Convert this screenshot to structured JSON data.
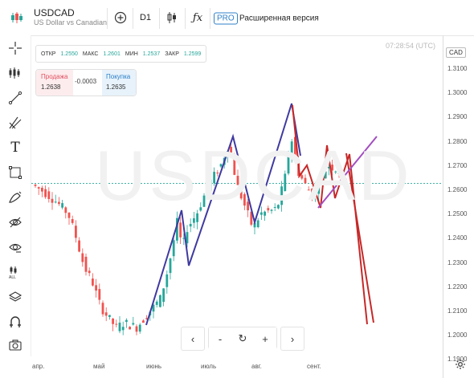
{
  "header": {
    "symbol": "USDCAD",
    "symbol_desc": "US Dollar vs Canadian",
    "timeframe": "D1",
    "pro_badge": "PRO",
    "extended_label": "Расширенная версия"
  },
  "ohlc": {
    "open_label": "ОТКР",
    "open_value": "1.2550",
    "high_label": "МАКС",
    "high_value": "1.2601",
    "low_label": "МИН",
    "low_value": "1.2537",
    "close_label": "ЗАКР",
    "close_value": "1.2599"
  },
  "trade": {
    "sell_label": "Продажа",
    "sell_price": "1.2638",
    "spread": "-0.0003",
    "buy_label": "Покупка",
    "buy_price": "1.2635"
  },
  "clock": "07:28:54 (UTC)",
  "currency_tag": "CAD",
  "watermark": "USDCAD",
  "price_axis": [
    "1.3100",
    "1.3000",
    "1.2900",
    "1.2800",
    "1.2700",
    "1.2600",
    "1.2500",
    "1.2400",
    "1.2300",
    "1.2200",
    "1.2100",
    "1.2000",
    "1.1900"
  ],
  "time_axis": [
    "апр.",
    "май",
    "июнь",
    "июль",
    "авг.",
    "сент."
  ],
  "colors": {
    "up": "#26a69a",
    "down": "#ef5350",
    "pattern": "#3f3aa0",
    "red_line": "#c62828",
    "violet_line": "#a24ec0"
  },
  "nav": {
    "prev": "‹",
    "zoom_out": "-",
    "reset": "↻",
    "zoom_in": "+",
    "next": "›"
  },
  "icons": [
    "crosshair-icon",
    "indicators-icon",
    "trendline-icon",
    "fib-icon",
    "text-icon",
    "rectangle-icon",
    "brush-icon",
    "hide-drawings-icon",
    "visibility-icon",
    "delete-all-icon",
    "layers-icon",
    "magnet-icon",
    "screenshot-icon",
    "add-icon",
    "candle-type-icon",
    "function-icon",
    "settings-icon"
  ]
}
